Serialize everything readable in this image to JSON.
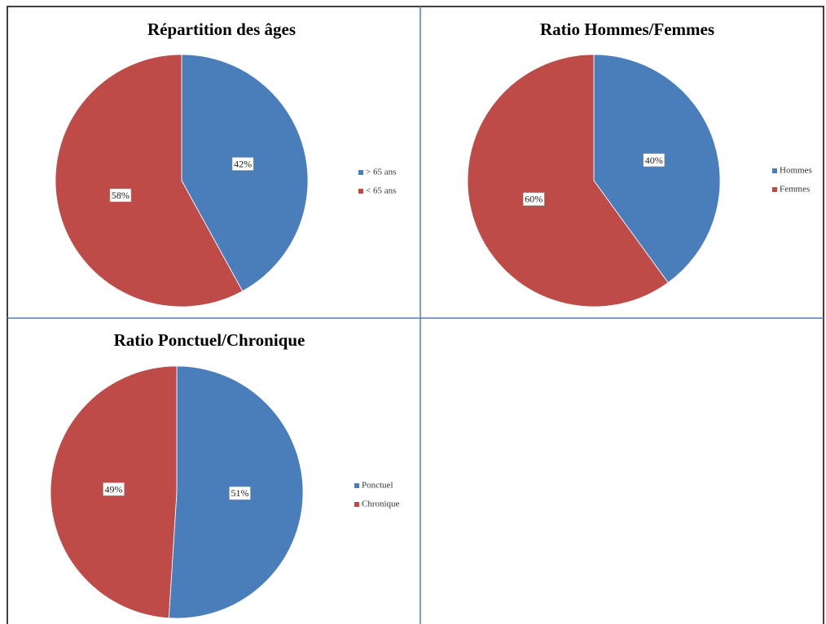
{
  "chart_data": [
    {
      "type": "pie",
      "title": "Répartition des âges",
      "categories": [
        "> 65 ans",
        "< 65 ans"
      ],
      "values": [
        42,
        58
      ],
      "value_labels": [
        "42%",
        "58%"
      ],
      "colors": [
        "#4a7ebb",
        "#be4b48"
      ],
      "legend": "right"
    },
    {
      "type": "pie",
      "title": "Ratio Hommes/Femmes",
      "categories": [
        "Hommes",
        "Femmes"
      ],
      "values": [
        40,
        60
      ],
      "value_labels": [
        "40%",
        "60%"
      ],
      "colors": [
        "#4a7ebb",
        "#be4b48"
      ],
      "legend": "right"
    },
    {
      "type": "pie",
      "title": "Ratio Ponctuel/Chronique",
      "categories": [
        "Ponctuel",
        "Chronique"
      ],
      "values": [
        51,
        49
      ],
      "value_labels": [
        "51%",
        "49%"
      ],
      "colors": [
        "#4a7ebb",
        "#be4b48"
      ],
      "legend": "right"
    }
  ]
}
